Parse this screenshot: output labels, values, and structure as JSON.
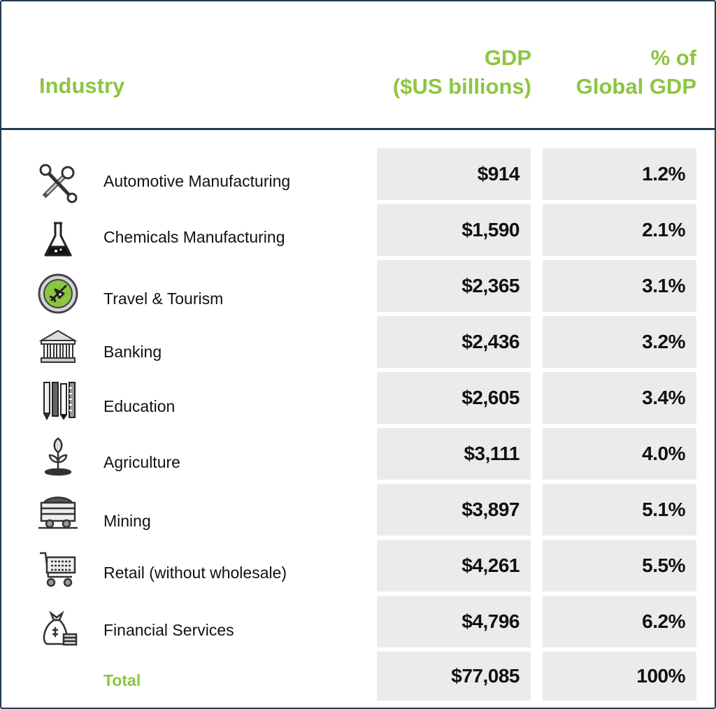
{
  "chart_data": {
    "type": "table",
    "columns": [
      "Industry",
      "GDP ($US billions)",
      "% of Global GDP"
    ],
    "header": {
      "industry": "Industry",
      "gdp_line1": "GDP",
      "gdp_line2": "($US billions)",
      "pct_line1": "% of",
      "pct_line2": "Global GDP"
    },
    "rows": [
      {
        "industry": "Automotive Manufacturing",
        "gdp": "$914",
        "pct": "1.2%",
        "icon": "tools-icon"
      },
      {
        "industry": "Chemicals Manufacturing",
        "gdp": "$1,590",
        "pct": "2.1%",
        "icon": "flask-icon"
      },
      {
        "industry": "Travel & Tourism",
        "gdp": "$2,365",
        "pct": "3.1%",
        "icon": "airplane-icon"
      },
      {
        "industry": "Banking",
        "gdp": "$2,436",
        "pct": "3.2%",
        "icon": "bank-icon"
      },
      {
        "industry": "Education",
        "gdp": "$2,605",
        "pct": "3.4%",
        "icon": "pencils-icon"
      },
      {
        "industry": "Agriculture",
        "gdp": "$3,111",
        "pct": "4.0%",
        "icon": "sprout-icon"
      },
      {
        "industry": "Mining",
        "gdp": "$3,897",
        "pct": "5.1%",
        "icon": "mine-cart-icon"
      },
      {
        "industry": "Retail (without wholesale)",
        "gdp": "$4,261",
        "pct": "5.5%",
        "icon": "shopping-cart-icon"
      },
      {
        "industry": "Financial Services",
        "gdp": "$4,796",
        "pct": "6.2%",
        "icon": "money-bag-icon"
      }
    ],
    "total": {
      "industry": "Total",
      "gdp": "$77,085",
      "pct": "100%"
    },
    "colors": {
      "accent": "#8cc63f",
      "border": "#243a52",
      "cell_bg": "#ebebeb"
    }
  }
}
